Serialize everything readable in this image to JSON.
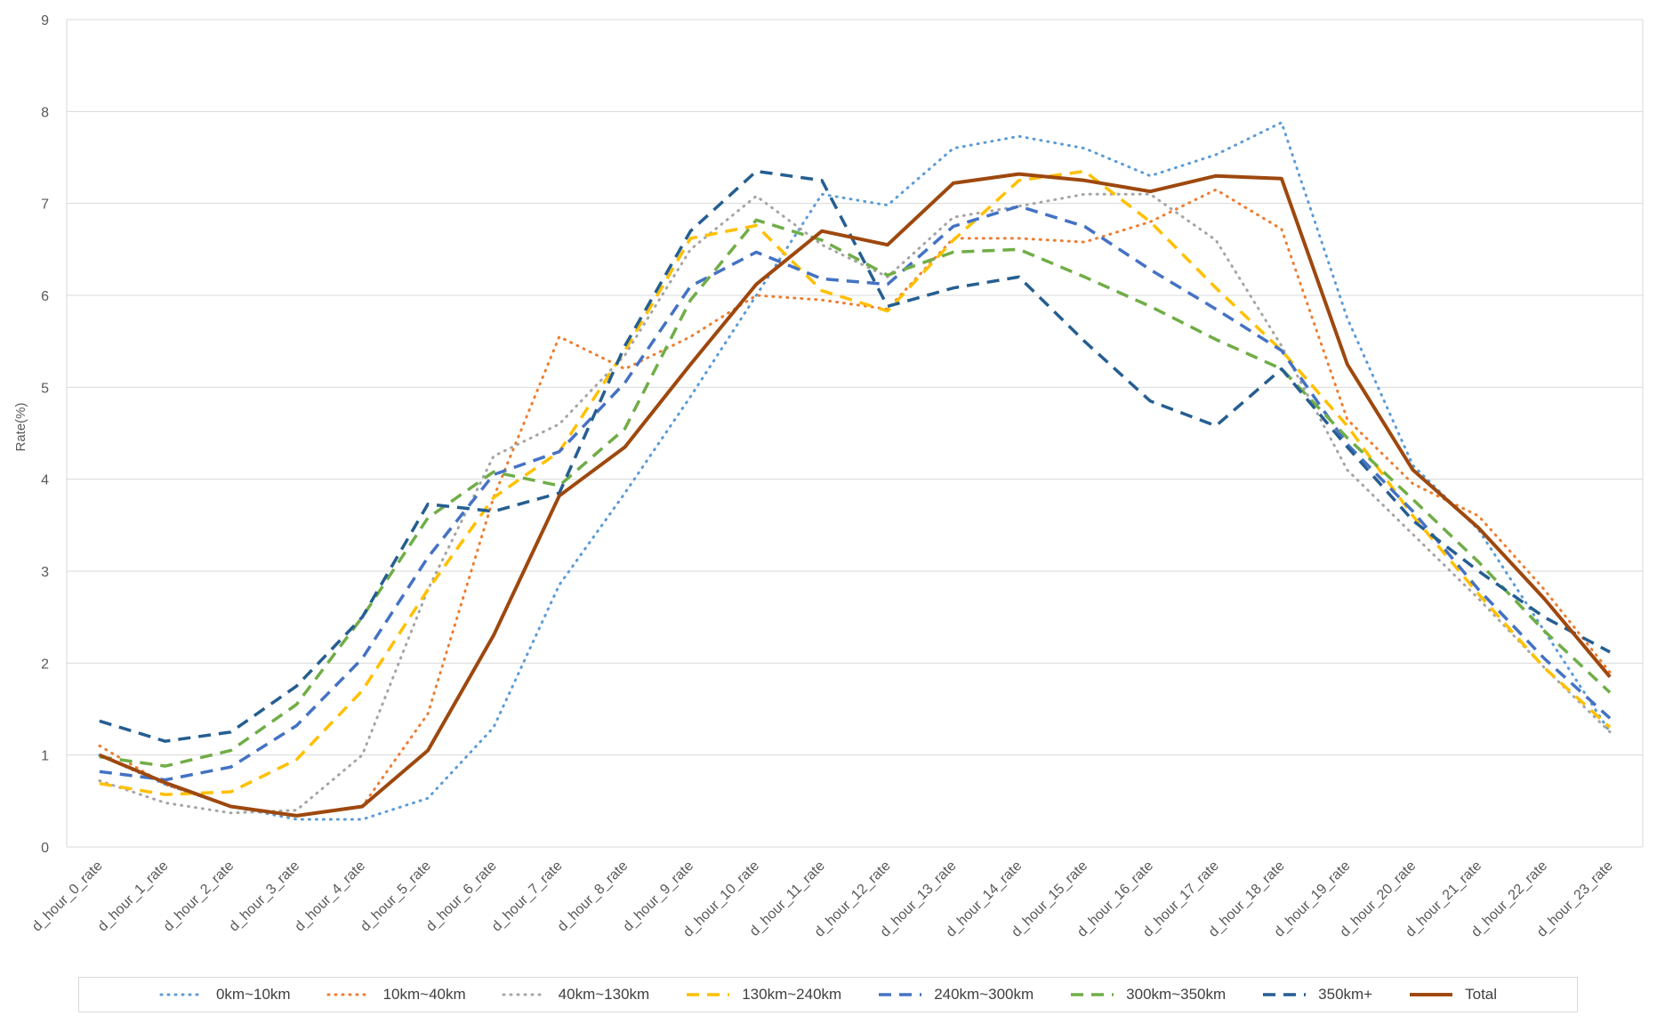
{
  "chart_data": {
    "type": "line",
    "title": "",
    "xlabel": "",
    "ylabel": "Rate(%)",
    "ylim": [
      0,
      9
    ],
    "yticks": [
      0,
      1,
      2,
      3,
      4,
      5,
      6,
      7,
      8,
      9
    ],
    "grid": true,
    "legend_position": "bottom",
    "categories": [
      "d_hour_0_rate",
      "d_hour_1_rate",
      "d_hour_2_rate",
      "d_hour_3_rate",
      "d_hour_4_rate",
      "d_hour_5_rate",
      "d_hour_6_rate",
      "d_hour_7_rate",
      "d_hour_8_rate",
      "d_hour_9_rate",
      "d_hour_10_rate",
      "d_hour_11_rate",
      "d_hour_12_rate",
      "d_hour_13_rate",
      "d_hour_14_rate",
      "d_hour_15_rate",
      "d_hour_16_rate",
      "d_hour_17_rate",
      "d_hour_18_rate",
      "d_hour_19_rate",
      "d_hour_20_rate",
      "d_hour_21_rate",
      "d_hour_22_rate",
      "d_hour_23_rate"
    ],
    "series": [
      {
        "name": "0km~10km",
        "color": "#5b9bd5",
        "dash": "dot",
        "width": 3,
        "values": [
          1.0,
          0.68,
          0.44,
          0.3,
          0.3,
          0.53,
          1.3,
          2.85,
          3.85,
          4.9,
          6.0,
          7.1,
          6.98,
          7.6,
          7.73,
          7.6,
          7.3,
          7.53,
          7.88,
          5.75,
          4.15,
          3.45,
          2.35,
          1.25
        ]
      },
      {
        "name": "10km~40km",
        "color": "#ed7d31",
        "dash": "dot",
        "width": 3,
        "values": [
          1.1,
          0.68,
          0.44,
          0.34,
          0.44,
          1.45,
          3.8,
          5.55,
          5.2,
          5.55,
          6.0,
          5.95,
          5.85,
          6.62,
          6.62,
          6.58,
          6.8,
          7.15,
          6.72,
          4.65,
          3.95,
          3.6,
          2.8,
          1.9
        ]
      },
      {
        "name": "40km~130km",
        "color": "#a5a5a5",
        "dash": "dot",
        "width": 3,
        "values": [
          0.72,
          0.48,
          0.37,
          0.4,
          1.0,
          2.8,
          4.25,
          4.6,
          5.35,
          6.5,
          7.08,
          6.55,
          6.2,
          6.85,
          6.97,
          7.1,
          7.1,
          6.6,
          5.45,
          4.1,
          3.4,
          2.7,
          1.95,
          1.25
        ]
      },
      {
        "name": "130km~240km",
        "color": "#ffc000",
        "dash": "dash",
        "width": 3.5,
        "values": [
          0.69,
          0.57,
          0.6,
          0.95,
          1.7,
          2.8,
          3.8,
          4.3,
          5.4,
          6.62,
          6.76,
          6.05,
          5.83,
          6.6,
          7.25,
          7.35,
          6.8,
          6.08,
          5.4,
          4.58,
          3.6,
          2.75,
          1.95,
          1.3
        ]
      },
      {
        "name": "240km~300km",
        "color": "#4472c4",
        "dash": "dash",
        "width": 3.5,
        "values": [
          0.82,
          0.73,
          0.87,
          1.32,
          2.05,
          3.15,
          4.05,
          4.3,
          5.05,
          6.1,
          6.47,
          6.18,
          6.12,
          6.75,
          6.97,
          6.75,
          6.28,
          5.85,
          5.4,
          4.38,
          3.65,
          2.8,
          2.05,
          1.4
        ]
      },
      {
        "name": "300km~350km",
        "color": "#70ad47",
        "dash": "dash",
        "width": 3.5,
        "values": [
          0.98,
          0.88,
          1.05,
          1.55,
          2.5,
          3.58,
          4.08,
          3.93,
          4.55,
          5.95,
          6.82,
          6.6,
          6.22,
          6.47,
          6.5,
          6.2,
          5.88,
          5.52,
          5.2,
          4.45,
          3.78,
          3.1,
          2.35,
          1.68
        ]
      },
      {
        "name": "350km+",
        "color": "#255e91",
        "dash": "dash",
        "width": 3.5,
        "values": [
          1.37,
          1.15,
          1.25,
          1.75,
          2.5,
          3.73,
          3.65,
          3.85,
          5.45,
          6.7,
          7.35,
          7.25,
          5.88,
          6.08,
          6.2,
          5.5,
          4.85,
          4.58,
          5.2,
          4.35,
          3.55,
          3.0,
          2.5,
          2.12
        ]
      },
      {
        "name": "Total",
        "color": "#9e480e",
        "dash": "solid",
        "width": 4,
        "values": [
          1.0,
          0.7,
          0.44,
          0.34,
          0.44,
          1.05,
          2.3,
          3.82,
          4.35,
          5.25,
          6.12,
          6.7,
          6.55,
          7.22,
          7.32,
          7.25,
          7.13,
          7.3,
          7.27,
          5.25,
          4.1,
          3.47,
          2.7,
          1.85
        ]
      }
    ]
  }
}
